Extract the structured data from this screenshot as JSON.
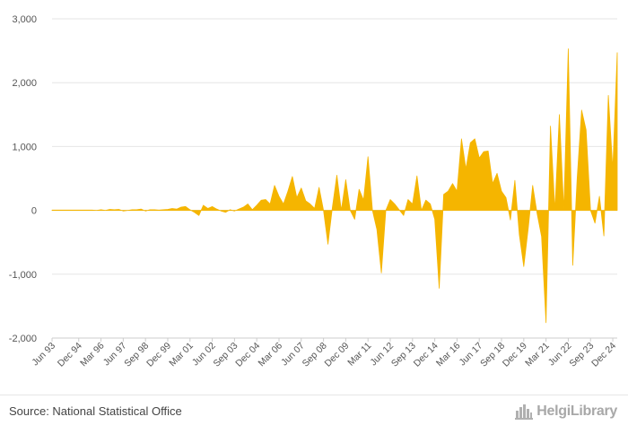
{
  "chart_data": {
    "type": "area",
    "title": "",
    "xlabel": "",
    "ylabel": "",
    "ylim": [
      -2000,
      3000
    ],
    "yticks": [
      3000,
      2000,
      1000,
      0,
      -1000,
      -2000
    ],
    "ytick_labels": [
      "3,000",
      "2,000",
      "1,000",
      "0",
      "-1,000",
      "-2,000"
    ],
    "grid": true,
    "color": "#f5b500",
    "x_start": "Jun 93",
    "x_step_months": 3,
    "x_ticks": [
      {
        "i": 0,
        "label": "Jun 93"
      },
      {
        "i": 6,
        "label": "Dec 94"
      },
      {
        "i": 11,
        "label": "Mar 96"
      },
      {
        "i": 16,
        "label": "Jun 97"
      },
      {
        "i": 21,
        "label": "Sep 98"
      },
      {
        "i": 26,
        "label": "Dec 99"
      },
      {
        "i": 31,
        "label": "Mar 01"
      },
      {
        "i": 36,
        "label": "Jun 02"
      },
      {
        "i": 41,
        "label": "Sep 03"
      },
      {
        "i": 46,
        "label": "Dec 04"
      },
      {
        "i": 51,
        "label": "Mar 06"
      },
      {
        "i": 56,
        "label": "Jun 07"
      },
      {
        "i": 61,
        "label": "Sep 08"
      },
      {
        "i": 66,
        "label": "Dec 09"
      },
      {
        "i": 71,
        "label": "Mar 11"
      },
      {
        "i": 76,
        "label": "Jun 12"
      },
      {
        "i": 81,
        "label": "Sep 13"
      },
      {
        "i": 86,
        "label": "Dec 14"
      },
      {
        "i": 91,
        "label": "Mar 16"
      },
      {
        "i": 96,
        "label": "Jun 17"
      },
      {
        "i": 101,
        "label": "Sep 18"
      },
      {
        "i": 106,
        "label": "Dec 19"
      },
      {
        "i": 111,
        "label": "Mar 21"
      },
      {
        "i": 116,
        "label": "Jun 22"
      },
      {
        "i": 121,
        "label": "Sep 23"
      },
      {
        "i": 126,
        "label": "Dec 24"
      }
    ],
    "values": [
      5,
      5,
      5,
      5,
      5,
      5,
      5,
      5,
      5,
      5,
      0,
      10,
      0,
      15,
      10,
      15,
      -10,
      0,
      10,
      10,
      20,
      -10,
      10,
      10,
      5,
      10,
      15,
      30,
      20,
      50,
      60,
      10,
      -30,
      -80,
      80,
      30,
      60,
      20,
      -10,
      -30,
      10,
      -10,
      20,
      50,
      100,
      10,
      80,
      160,
      170,
      100,
      390,
      220,
      100,
      300,
      530,
      200,
      350,
      150,
      100,
      30,
      360,
      0,
      -530,
      50,
      550,
      0,
      480,
      0,
      -140,
      330,
      160,
      840,
      0,
      -300,
      -980,
      0,
      170,
      100,
      10,
      -80,
      170,
      100,
      540,
      0,
      160,
      100,
      -140,
      -1220,
      250,
      300,
      420,
      300,
      1120,
      650,
      1060,
      1120,
      820,
      920,
      930,
      420,
      580,
      300,
      200,
      -150,
      470,
      -380,
      -880,
      -280,
      390,
      -50,
      -410,
      -1760,
      1320,
      0,
      1500,
      0,
      2530,
      -860,
      500,
      1570,
      1260,
      0,
      -200,
      220,
      -400,
      1800,
      640,
      2470
    ]
  },
  "footer": {
    "source": "Source: National Statistical Office",
    "logo": "HelgiLibrary"
  },
  "colors": {
    "area": "#f5b500",
    "grid": "#e6e6e6",
    "zero_line": "#cccccc",
    "text": "#555555"
  },
  "icons": {
    "logo_icon": "city-skyline-icon"
  }
}
